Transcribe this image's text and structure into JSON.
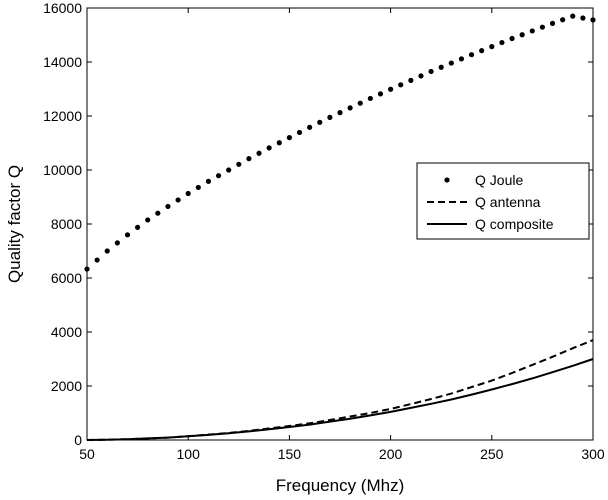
{
  "chart_data": {
    "type": "line",
    "title": "",
    "xlabel": "Frequency (Mhz)",
    "ylabel": "Quality factor Q",
    "xlim": [
      50,
      300
    ],
    "ylim": [
      0,
      16000
    ],
    "xticks": [
      50,
      100,
      150,
      200,
      250,
      300
    ],
    "yticks": [
      0,
      2000,
      4000,
      6000,
      8000,
      10000,
      12000,
      14000,
      16000
    ],
    "grid": false,
    "legend_position": "right",
    "x": [
      50,
      60,
      70,
      80,
      90,
      100,
      110,
      120,
      130,
      140,
      150,
      160,
      170,
      180,
      190,
      200,
      210,
      220,
      230,
      240,
      250,
      260,
      270,
      280,
      290,
      300
    ],
    "series": [
      {
        "name": "Q Joule",
        "style": "dotted",
        "color": "#000000",
        "values": [
          6330,
          7000,
          7600,
          8150,
          8650,
          9130,
          9580,
          10000,
          10420,
          10820,
          11200,
          11580,
          11950,
          12300,
          12650,
          12990,
          13320,
          13650,
          13960,
          14270,
          14570,
          14870,
          15150,
          15430,
          15700,
          15560
        ]
      },
      {
        "name": "Q antenna",
        "style": "dashed",
        "color": "#000000",
        "values": [
          0,
          10,
          30,
          60,
          90,
          140,
          200,
          260,
          340,
          430,
          520,
          620,
          740,
          870,
          1000,
          1150,
          1330,
          1520,
          1720,
          1960,
          2200,
          2480,
          2780,
          3080,
          3400,
          3700
        ]
      },
      {
        "name": "Q composite",
        "style": "solid",
        "color": "#000000",
        "values": [
          0,
          10,
          30,
          60,
          90,
          140,
          190,
          250,
          320,
          400,
          480,
          570,
          680,
          790,
          910,
          1040,
          1190,
          1340,
          1500,
          1680,
          1870,
          2070,
          2280,
          2510,
          2750,
          3000
        ]
      }
    ]
  }
}
